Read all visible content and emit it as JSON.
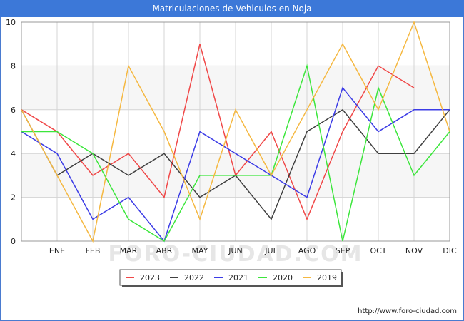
{
  "title": "Matriculaciones de Vehiculos en Noja",
  "source": "http://www.foro-ciudad.com",
  "watermark": "FORO-CIUDAD.COM",
  "chart_data": {
    "type": "line",
    "categories": [
      "",
      "ENE",
      "FEB",
      "MAR",
      "ABR",
      "MAY",
      "JUN",
      "JUL",
      "AGO",
      "SEP",
      "OCT",
      "NOV",
      "DIC"
    ],
    "ylim": [
      0,
      10
    ],
    "yticks": [
      0,
      2,
      4,
      6,
      8,
      10
    ],
    "grid": true,
    "legend_position": "bottom",
    "series": [
      {
        "name": "2023",
        "color": "#f04848",
        "values": [
          6,
          5,
          3,
          4,
          2,
          9,
          3,
          5,
          1,
          5,
          8,
          7,
          null
        ]
      },
      {
        "name": "2022",
        "color": "#404040",
        "values": [
          6,
          3,
          4,
          3,
          4,
          2,
          3,
          1,
          5,
          6,
          4,
          4,
          6
        ]
      },
      {
        "name": "2021",
        "color": "#3c3ce6",
        "values": [
          5,
          4,
          1,
          2,
          0,
          5,
          4,
          3,
          2,
          7,
          5,
          6,
          6
        ]
      },
      {
        "name": "2020",
        "color": "#3ce63c",
        "values": [
          5,
          5,
          4,
          1,
          0,
          3,
          3,
          3,
          8,
          0,
          7,
          3,
          5
        ]
      },
      {
        "name": "2019",
        "color": "#f5b841",
        "values": [
          6,
          3,
          0,
          8,
          5,
          1,
          6,
          3,
          6,
          9,
          6,
          10,
          5
        ]
      }
    ]
  }
}
